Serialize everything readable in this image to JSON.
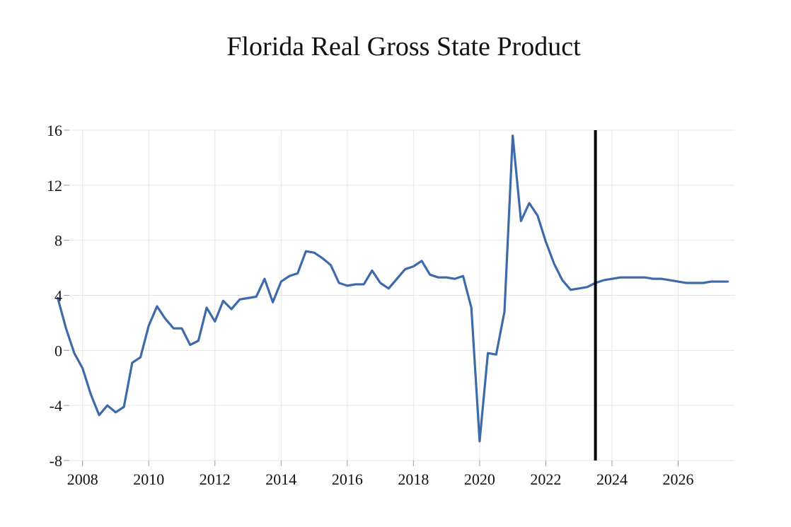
{
  "chart_data": {
    "type": "line",
    "title": "Florida Real Gross State Product",
    "xlabel": "",
    "ylabel": "",
    "xlim": [
      2007.6,
      2027.7
    ],
    "ylim": [
      -8,
      16
    ],
    "grid": true,
    "x_ticks": [
      2008,
      2010,
      2012,
      2014,
      2016,
      2018,
      2020,
      2022,
      2024,
      2026
    ],
    "x_tick_labels": [
      "2008",
      "2010",
      "2012",
      "2014",
      "2016",
      "2018",
      "2020",
      "2022",
      "2024",
      "2026"
    ],
    "y_ticks": [
      -8,
      -4,
      0,
      4,
      8,
      12,
      16
    ],
    "y_tick_labels": [
      "-8",
      "-4",
      "0",
      "4",
      "8",
      "12",
      "16"
    ],
    "vertical_marker": {
      "x": 2023.5,
      "color": "#000000"
    },
    "series": [
      {
        "name": "Florida Real Gross State Product",
        "color": "#3d6aaa",
        "x": [
          2007.25,
          2007.5,
          2007.75,
          2008.0,
          2008.25,
          2008.5,
          2008.75,
          2009.0,
          2009.25,
          2009.5,
          2009.75,
          2010.0,
          2010.25,
          2010.5,
          2010.75,
          2011.0,
          2011.25,
          2011.5,
          2011.75,
          2012.0,
          2012.25,
          2012.5,
          2012.75,
          2013.0,
          2013.25,
          2013.5,
          2013.75,
          2014.0,
          2014.25,
          2014.5,
          2014.75,
          2015.0,
          2015.25,
          2015.5,
          2015.75,
          2016.0,
          2016.25,
          2016.5,
          2016.75,
          2017.0,
          2017.25,
          2017.5,
          2017.75,
          2018.0,
          2018.25,
          2018.5,
          2018.75,
          2019.0,
          2019.25,
          2019.5,
          2019.75,
          2020.0,
          2020.25,
          2020.5,
          2020.75,
          2021.0,
          2021.25,
          2021.5,
          2021.75,
          2022.0,
          2022.25,
          2022.5,
          2022.75,
          2023.0,
          2023.25,
          2023.5,
          2023.75,
          2024.0,
          2024.25,
          2024.5,
          2024.75,
          2025.0,
          2025.25,
          2025.5,
          2025.75,
          2026.0,
          2026.25,
          2026.5,
          2026.75,
          2027.0,
          2027.25,
          2027.5
        ],
        "values": [
          3.8,
          1.6,
          -0.2,
          -1.3,
          -3.2,
          -4.7,
          -4.0,
          -4.5,
          -4.1,
          -0.9,
          -0.5,
          1.8,
          3.2,
          2.3,
          1.6,
          1.6,
          0.4,
          0.7,
          3.1,
          2.1,
          3.6,
          3.0,
          3.7,
          3.8,
          3.9,
          5.2,
          3.5,
          5.0,
          5.4,
          5.6,
          7.2,
          7.1,
          6.7,
          6.2,
          4.9,
          4.7,
          4.8,
          4.8,
          5.8,
          4.9,
          4.5,
          5.2,
          5.9,
          6.1,
          6.5,
          5.5,
          5.3,
          5.3,
          5.2,
          5.4,
          3.1,
          -6.6,
          -0.2,
          -0.3,
          2.8,
          15.6,
          9.4,
          10.7,
          9.8,
          7.9,
          6.3,
          5.1,
          4.4,
          4.5,
          4.6,
          4.9,
          5.1,
          5.2,
          5.3,
          5.3,
          5.3,
          5.3,
          5.2,
          5.2,
          5.1,
          5.0,
          4.9,
          4.9,
          4.9,
          5.0,
          5.0,
          5.0
        ]
      }
    ]
  }
}
